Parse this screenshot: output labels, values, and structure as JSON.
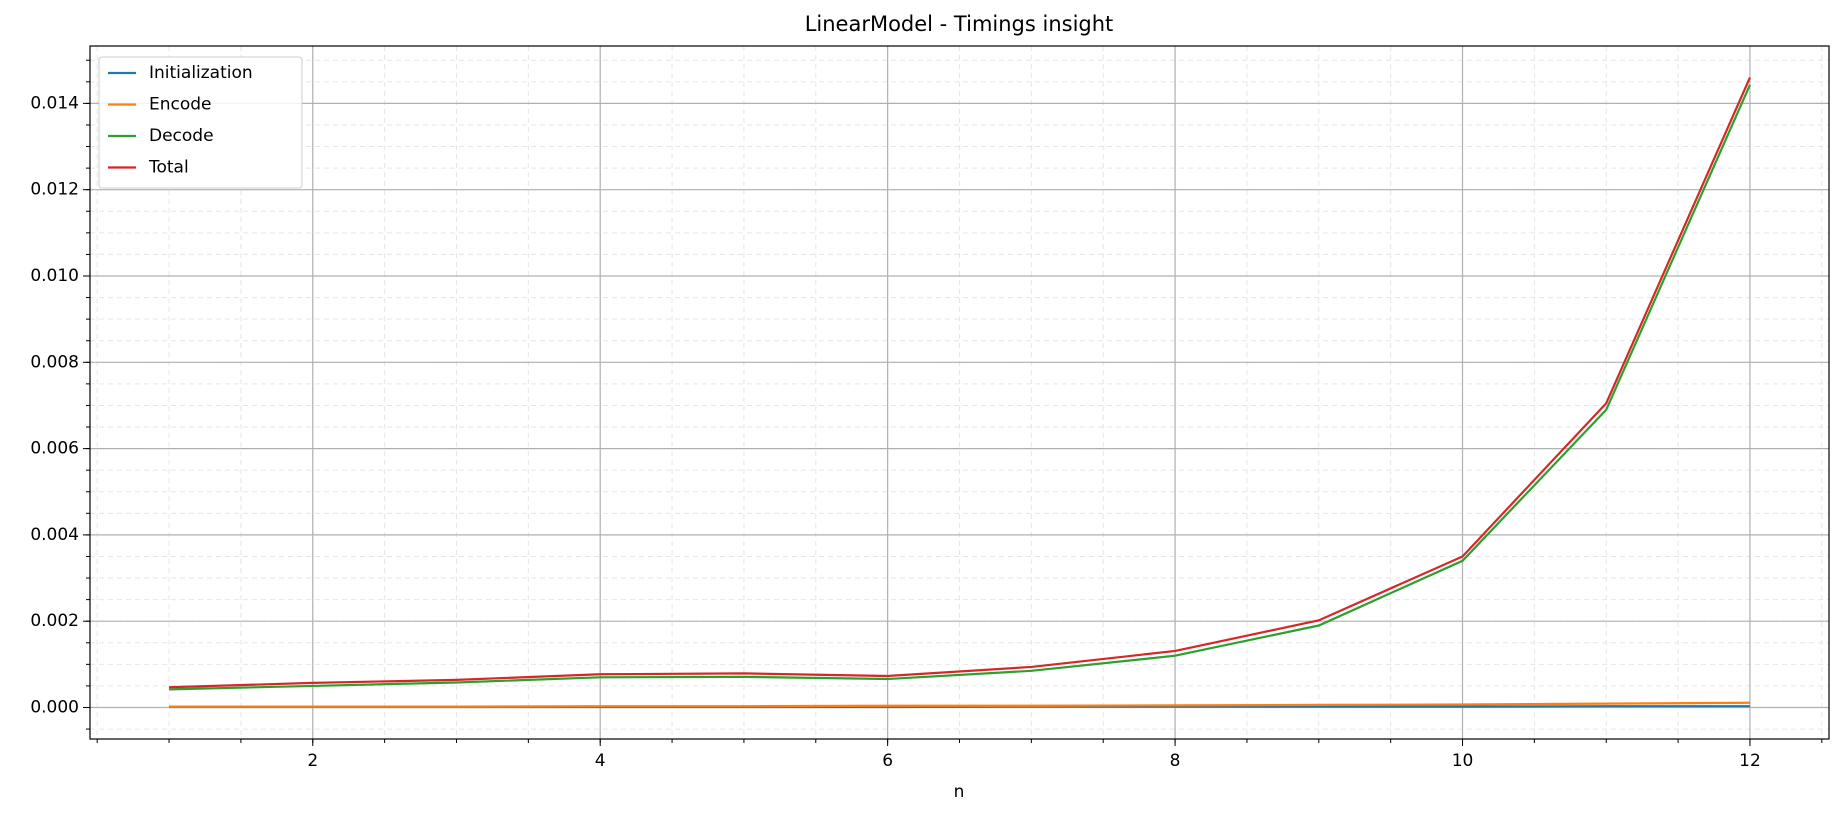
{
  "chart_data": {
    "type": "line",
    "title": "LinearModel - Timings insight",
    "xlabel": "n",
    "x": [
      1,
      2,
      3,
      4,
      5,
      6,
      7,
      8,
      9,
      10,
      11,
      12
    ],
    "series": [
      {
        "name": "Initialization",
        "color": "#1f77b4",
        "values": [
          1e-05,
          1e-05,
          1e-05,
          1e-05,
          1e-05,
          1e-05,
          2e-05,
          2e-05,
          2e-05,
          2e-05,
          3e-05,
          3e-05
        ]
      },
      {
        "name": "Encode",
        "color": "#ff7f0e",
        "values": [
          2e-05,
          2e-05,
          2e-05,
          3e-05,
          3e-05,
          4e-05,
          4e-05,
          5e-05,
          6e-05,
          7e-05,
          9e-05,
          0.00011
        ]
      },
      {
        "name": "Decode",
        "color": "#2ca02c",
        "values": [
          0.00042,
          0.0005,
          0.00058,
          0.0007,
          0.00071,
          0.00066,
          0.00085,
          0.0012,
          0.0019,
          0.0034,
          0.0069,
          0.01443
        ]
      },
      {
        "name": "Total",
        "color": "#d62728",
        "values": [
          0.00047,
          0.00057,
          0.00064,
          0.00077,
          0.00079,
          0.00073,
          0.00094,
          0.00131,
          0.00202,
          0.0035,
          0.00705,
          0.0146
        ]
      }
    ],
    "xlim": [
      0.45,
      12.55
    ],
    "ylim": [
      -0.00073,
      0.01533
    ],
    "xticks": [
      2,
      4,
      6,
      8,
      10,
      12
    ],
    "yticks": [
      {
        "value": 0,
        "label": "0.000"
      },
      {
        "value": 0.002,
        "label": "0.002"
      },
      {
        "value": 0.004,
        "label": "0.004"
      },
      {
        "value": 0.006,
        "label": "0.006"
      },
      {
        "value": 0.008,
        "label": "0.008"
      },
      {
        "value": 0.01,
        "label": "0.010"
      },
      {
        "value": 0.012,
        "label": "0.012"
      },
      {
        "value": 0.014,
        "label": "0.014"
      }
    ],
    "xminorticks": [
      0.5,
      1,
      1.5,
      2,
      2.5,
      3,
      3.5,
      4,
      4.5,
      5,
      5.5,
      6,
      6.5,
      7,
      7.5,
      8,
      8.5,
      9,
      9.5,
      10,
      10.5,
      11,
      11.5,
      12,
      12.5
    ],
    "yminorticks": [
      -0.0005,
      0,
      0.0005,
      0.001,
      0.0015,
      0.002,
      0.0025,
      0.003,
      0.0035,
      0.004,
      0.0045,
      0.005,
      0.0055,
      0.006,
      0.0065,
      0.007,
      0.0075,
      0.008,
      0.0085,
      0.009,
      0.0095,
      0.01,
      0.0105,
      0.011,
      0.0115,
      0.012,
      0.0125,
      0.013,
      0.0135,
      0.014,
      0.0145,
      0.015
    ],
    "grid": true,
    "legend": "upper left"
  }
}
